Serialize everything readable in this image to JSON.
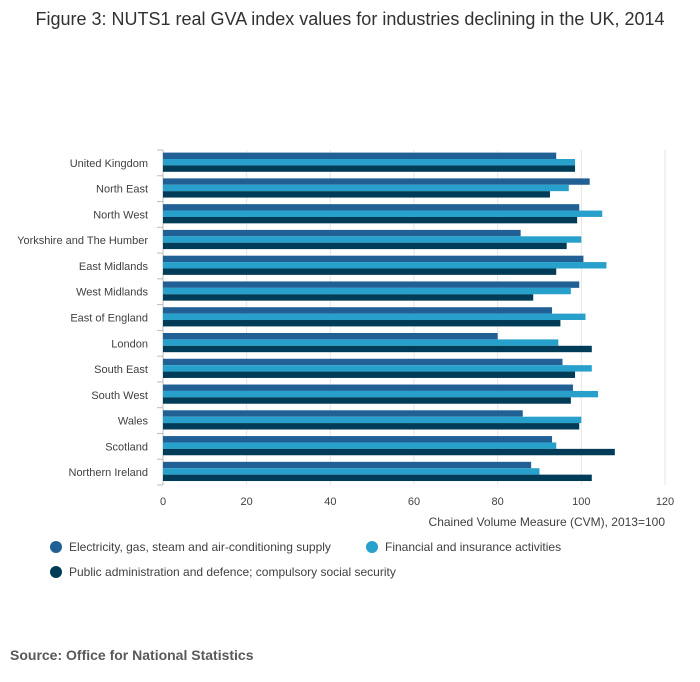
{
  "title": "Figure 3: NUTS1 real GVA index values for industries declining in the UK, 2014",
  "source": "Source: Office for National Statistics",
  "chart_data": {
    "type": "bar",
    "orientation": "horizontal",
    "title": "Figure 3: NUTS1 real GVA index values for industries declining in the UK, 2014",
    "xlabel": "Chained Volume Measure (CVM), 2013=100",
    "ylabel": "",
    "xlim": [
      0,
      120
    ],
    "xticks": [
      0,
      20,
      40,
      60,
      80,
      100,
      120
    ],
    "grid": true,
    "legend_position": "bottom",
    "categories": [
      "United Kingdom",
      "North East",
      "North West",
      "Yorkshire and The Humber",
      "East Midlands",
      "West Midlands",
      "East of England",
      "London",
      "South East",
      "South West",
      "Wales",
      "Scotland",
      "Northern Ireland"
    ],
    "series": [
      {
        "name": "Electricity, gas, steam and air-conditioning supply",
        "color": "#206095",
        "values": [
          94,
          102,
          99.5,
          85.5,
          100.5,
          99.5,
          93,
          80,
          95.5,
          98,
          86,
          93,
          88
        ]
      },
      {
        "name": "Financial and insurance activities",
        "color": "#27a0cc",
        "values": [
          98.5,
          97,
          105,
          100,
          106,
          97.5,
          101,
          94.5,
          102.5,
          104,
          100,
          94,
          90
        ]
      },
      {
        "name": "Public administration and defence; compulsory social security",
        "color": "#003c57",
        "values": [
          98.5,
          92.5,
          99,
          96.5,
          94,
          88.5,
          95,
          102.5,
          98.5,
          97.5,
          99.5,
          108,
          102.5
        ]
      }
    ]
  }
}
